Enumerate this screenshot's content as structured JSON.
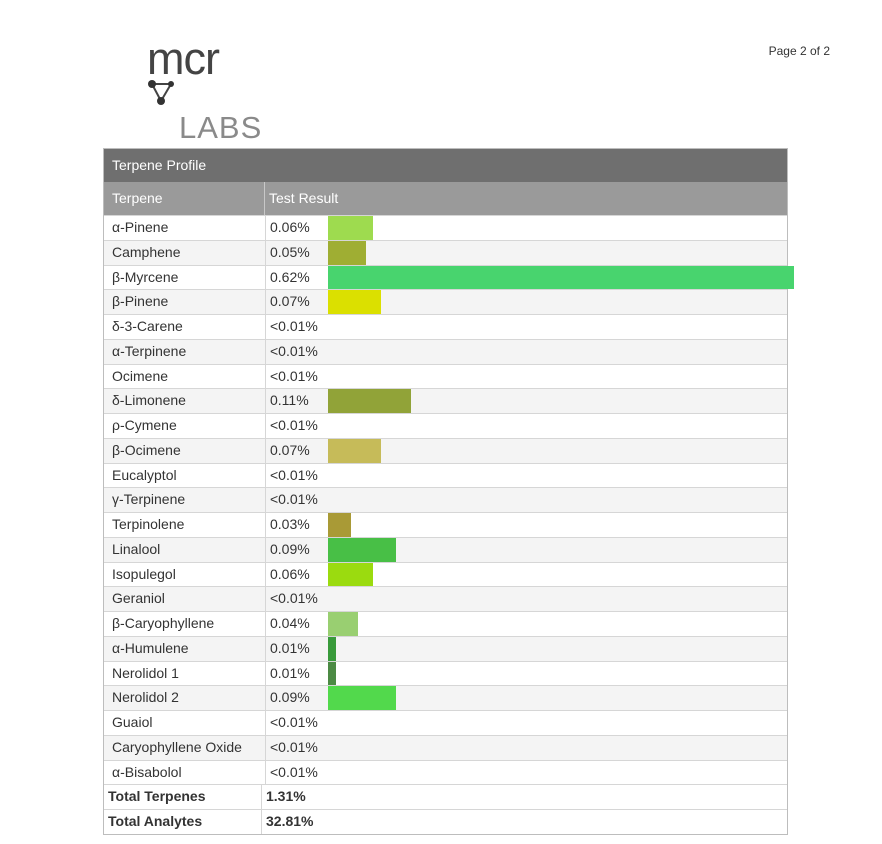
{
  "page": {
    "number": "Page 2 of 2"
  },
  "logo": {
    "top_text": "mcr",
    "bottom_text": "LABS",
    "mark": "molecule-icon"
  },
  "table": {
    "title": "Terpene Profile",
    "col_terpene": "Terpene",
    "col_result": "Test Result",
    "bar_max": 0.62,
    "rows": [
      {
        "name": "α-Pinene",
        "result": "0.06%",
        "value": 0.06,
        "color": "#9edb4f"
      },
      {
        "name": "Camphene",
        "result": "0.05%",
        "value": 0.05,
        "color": "#9fae33"
      },
      {
        "name": "β-Myrcene",
        "result": "0.62%",
        "value": 0.62,
        "color": "#48d46e"
      },
      {
        "name": "β-Pinene",
        "result": "0.07%",
        "value": 0.07,
        "color": "#dbe000"
      },
      {
        "name": "δ-3-Carene",
        "result": "<0.01%",
        "value": 0,
        "color": ""
      },
      {
        "name": "α-Terpinene",
        "result": "<0.01%",
        "value": 0,
        "color": ""
      },
      {
        "name": "Ocimene",
        "result": "<0.01%",
        "value": 0,
        "color": ""
      },
      {
        "name": "δ-Limonene",
        "result": "0.11%",
        "value": 0.11,
        "color": "#91a338"
      },
      {
        "name": "ρ-Cymene",
        "result": "<0.01%",
        "value": 0,
        "color": ""
      },
      {
        "name": "β-Ocimene",
        "result": "0.07%",
        "value": 0.07,
        "color": "#c6bb59"
      },
      {
        "name": "Eucalyptol",
        "result": "<0.01%",
        "value": 0,
        "color": ""
      },
      {
        "name": "γ-Terpinene",
        "result": "<0.01%",
        "value": 0,
        "color": ""
      },
      {
        "name": "Terpinolene",
        "result": "0.03%",
        "value": 0.03,
        "color": "#a99a36"
      },
      {
        "name": "Linalool",
        "result": "0.09%",
        "value": 0.09,
        "color": "#48bf46"
      },
      {
        "name": "Isopulegol",
        "result": "0.06%",
        "value": 0.06,
        "color": "#9bdb0f"
      },
      {
        "name": "Geraniol",
        "result": "<0.01%",
        "value": 0,
        "color": ""
      },
      {
        "name": "β-Caryophyllene",
        "result": "0.04%",
        "value": 0.04,
        "color": "#99cf71"
      },
      {
        "name": "α-Humulene",
        "result": "0.01%",
        "value": 0.01,
        "color": "#389a3a"
      },
      {
        "name": "Nerolidol 1",
        "result": "0.01%",
        "value": 0.01,
        "color": "#4c8a44"
      },
      {
        "name": "Nerolidol 2",
        "result": "0.09%",
        "value": 0.09,
        "color": "#52d94c"
      },
      {
        "name": "Guaiol",
        "result": "<0.01%",
        "value": 0,
        "color": ""
      },
      {
        "name": "Caryophyllene Oxide",
        "result": "<0.01%",
        "value": 0,
        "color": ""
      },
      {
        "name": "α-Bisabolol",
        "result": "<0.01%",
        "value": 0,
        "color": ""
      }
    ],
    "totals": [
      {
        "name": "Total Terpenes",
        "result": "1.31%"
      },
      {
        "name": "Total Analytes",
        "result": "32.81%"
      }
    ]
  }
}
